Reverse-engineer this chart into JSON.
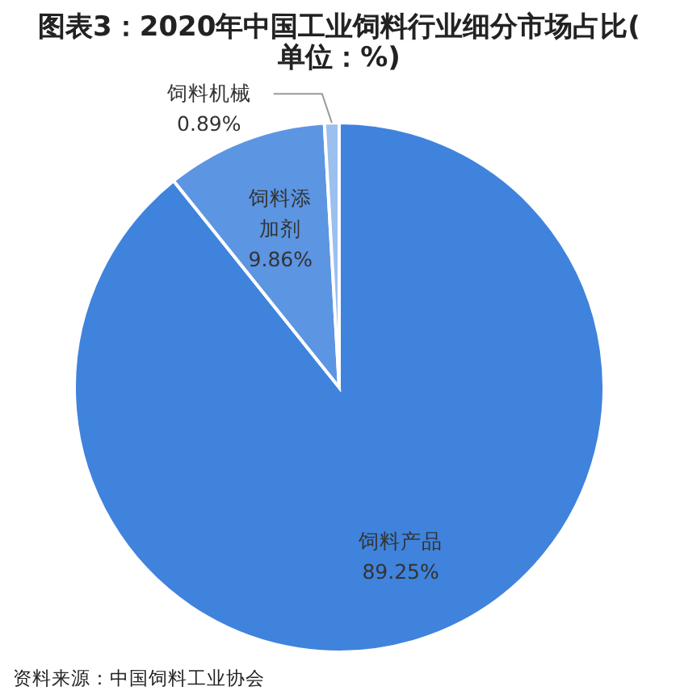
{
  "chart_data": {
    "type": "pie",
    "title": "图表3：2020年中国工业饲料行业细分市场占比(单位：%)",
    "categories": [
      "饲料产品",
      "饲料添加剂",
      "饲料机械"
    ],
    "values": [
      89.25,
      9.86,
      0.89
    ],
    "colors": [
      "#3f83dd",
      "#5c95e2",
      "#9cc0ee"
    ],
    "value_labels": [
      "89.25%",
      "9.86%",
      "0.89%"
    ],
    "annotations": [
      "资料来源：中国饲料工业协会"
    ]
  }
}
